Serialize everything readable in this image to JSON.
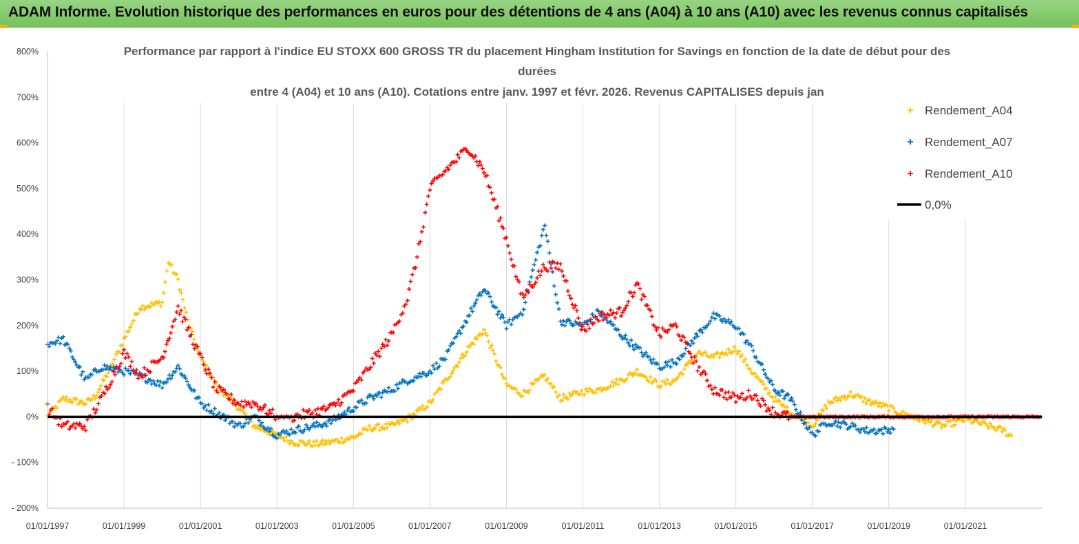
{
  "banner": {
    "title": "ADAM Informe. Evolution historique des performances en euros pour des détentions de 4 ans (A04) à 10 ans (A10) avec les revenus connus capitalisés"
  },
  "chart_data": {
    "type": "scatter",
    "title_lines": [
      "Performance par rapport à l'indice EU STOXX 600 GROSS TR  du placement Hingham Institution for Savings en fonction de la date de début pour des",
      "durées",
      "entre 4 (A04) et 10 ans (A10). Cotations entre janv. 1997 et févr. 2026. Revenus CAPITALISES depuis jan"
    ],
    "xlim": [
      "1997-01-01",
      "2023-01-01"
    ],
    "ylim": [
      -200,
      800
    ],
    "y_unit": "%",
    "x_ticks": [
      "01/01/1997",
      "01/01/1999",
      "01/01/2001",
      "01/01/2003",
      "01/01/2005",
      "01/01/2007",
      "01/01/2009",
      "01/01/2011",
      "01/01/2013",
      "01/01/2015",
      "01/01/2017",
      "01/01/2019",
      "01/01/2021"
    ],
    "y_ticks": [
      "800%",
      "700%",
      "600%",
      "500%",
      "400%",
      "300%",
      "200%",
      "100%",
      "0%",
      "- 100%",
      "- 200%"
    ],
    "grid": "vertical",
    "legend_position": "right",
    "legend": [
      "Rendement_A04",
      "Rendement_A07",
      "Rendement_A10",
      "0,0%"
    ],
    "colors": {
      "Rendement_A04": "#ffc000",
      "Rendement_A07": "#0070c0",
      "Rendement_A10": "#ff0000",
      "0,0%": "#000000"
    },
    "series": [
      {
        "name": "Rendement_A04",
        "x": [
          "1997-01-01",
          "1997-06-01",
          "1998-01-01",
          "1998-04-01",
          "1998-09-01",
          "1999-01-01",
          "1999-06-01",
          "2000-01-01",
          "2000-03-01",
          "2000-06-01",
          "2000-09-01",
          "2001-01-01",
          "2001-06-01",
          "2002-01-01",
          "2002-06-01",
          "2003-01-01",
          "2003-06-01",
          "2004-01-01",
          "2004-06-01",
          "2005-01-01",
          "2005-06-01",
          "2006-01-01",
          "2006-06-01",
          "2007-01-01",
          "2007-06-01",
          "2008-01-01",
          "2008-06-01",
          "2009-01-01",
          "2009-06-01",
          "2010-01-01",
          "2010-06-01",
          "2011-01-01",
          "2011-06-01",
          "2012-01-01",
          "2012-06-01",
          "2013-01-01",
          "2013-06-01",
          "2014-01-01",
          "2014-06-01",
          "2015-01-01",
          "2015-06-01",
          "2016-01-01",
          "2016-06-01",
          "2017-01-01",
          "2017-06-01",
          "2018-01-01",
          "2018-06-01",
          "2019-01-01",
          "2019-06-01",
          "2020-01-01",
          "2020-06-01",
          "2021-01-01",
          "2021-06-01",
          "2022-01-01",
          "2022-04-01"
        ],
        "values": [
          0,
          40,
          30,
          45,
          110,
          170,
          240,
          250,
          340,
          300,
          210,
          130,
          70,
          20,
          -20,
          -40,
          -55,
          -60,
          -55,
          -45,
          -25,
          -20,
          -5,
          30,
          80,
          150,
          190,
          70,
          50,
          90,
          40,
          55,
          60,
          80,
          100,
          70,
          80,
          140,
          130,
          150,
          100,
          40,
          10,
          -20,
          30,
          50,
          35,
          20,
          5,
          -10,
          -20,
          -5,
          -15,
          -30,
          -45
        ]
      },
      {
        "name": "Rendement_A07",
        "x": [
          "1997-01-01",
          "1997-06-01",
          "1998-01-01",
          "1998-06-01",
          "1999-01-01",
          "1999-06-01",
          "2000-01-01",
          "2000-06-01",
          "2001-01-01",
          "2001-06-01",
          "2002-01-01",
          "2002-06-01",
          "2003-01-01",
          "2003-06-01",
          "2004-01-01",
          "2004-06-01",
          "2005-01-01",
          "2005-06-01",
          "2006-01-01",
          "2006-06-01",
          "2007-01-01",
          "2007-06-01",
          "2008-01-01",
          "2008-06-01",
          "2009-01-01",
          "2009-06-01",
          "2010-01-01",
          "2010-06-01",
          "2011-01-01",
          "2011-06-01",
          "2012-01-01",
          "2012-06-01",
          "2013-01-01",
          "2013-06-01",
          "2014-01-01",
          "2014-06-01",
          "2015-01-01",
          "2015-06-01",
          "2016-01-01",
          "2016-06-01",
          "2017-01-01",
          "2017-06-01",
          "2018-01-01",
          "2018-06-01",
          "2019-01-01",
          "2019-03-01"
        ],
        "values": [
          160,
          170,
          80,
          110,
          100,
          90,
          70,
          110,
          30,
          10,
          -20,
          0,
          -40,
          -30,
          -20,
          -10,
          20,
          40,
          60,
          80,
          100,
          130,
          220,
          280,
          200,
          230,
          420,
          210,
          200,
          230,
          180,
          150,
          110,
          120,
          180,
          220,
          200,
          150,
          60,
          40,
          -40,
          -10,
          -20,
          -30,
          -30,
          -20
        ]
      },
      {
        "name": "Rendement_A10",
        "x": [
          "1997-01-01",
          "1997-06-01",
          "1998-01-01",
          "1998-06-01",
          "1999-01-01",
          "1999-06-01",
          "2000-01-01",
          "2000-06-01",
          "2001-01-01",
          "2001-06-01",
          "2002-01-01",
          "2002-06-01",
          "2003-01-01",
          "2003-06-01",
          "2004-01-01",
          "2004-06-01",
          "2005-01-01",
          "2005-06-01",
          "2006-01-01",
          "2006-06-01",
          "2006-09-01",
          "2007-01-01",
          "2007-06-01",
          "2008-01-01",
          "2008-06-01",
          "2009-01-01",
          "2009-06-01",
          "2010-01-01",
          "2010-06-01",
          "2011-01-01",
          "2011-06-01",
          "2012-01-01",
          "2012-06-01",
          "2013-01-01",
          "2013-06-01",
          "2014-01-01",
          "2014-06-01",
          "2015-01-01",
          "2015-06-01",
          "2016-01-01",
          "2016-06-01",
          "2017-01-01",
          "2018-01-01",
          "2019-01-01",
          "2020-01-01",
          "2021-01-01",
          "2022-01-01",
          "2023-01-01"
        ],
        "values": [
          20,
          -20,
          -20,
          40,
          140,
          90,
          130,
          240,
          130,
          60,
          30,
          30,
          0,
          0,
          10,
          20,
          60,
          110,
          180,
          260,
          350,
          500,
          540,
          590,
          540,
          390,
          260,
          330,
          330,
          190,
          220,
          230,
          290,
          180,
          200,
          110,
          60,
          40,
          50,
          10,
          0,
          0,
          0,
          0,
          0,
          0,
          0,
          0
        ]
      }
    ]
  }
}
